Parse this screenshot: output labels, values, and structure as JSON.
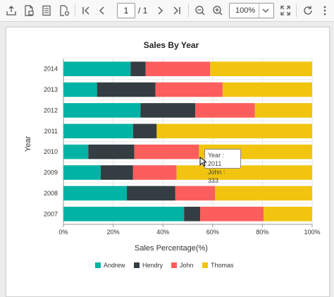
{
  "toolbar": {
    "page_number": "1",
    "page_total": "/ 1",
    "zoom_value": "100%",
    "icon_names": [
      "export-icon",
      "print-icon",
      "page-setup-icon",
      "settings-page-icon",
      "first-page-icon",
      "previous-page-icon",
      "next-page-icon",
      "last-page-icon",
      "zoom-out-icon",
      "zoom-in-icon",
      "fit-page-icon",
      "refresh-icon"
    ]
  },
  "tooltip": {
    "line1": "Year : 2011",
    "line2": "John : 333"
  },
  "chart_data": {
    "type": "bar",
    "orientation": "horizontal",
    "stacking": "100%",
    "title": "Sales By Year",
    "xlabel": "Sales Percentage(%)",
    "ylabel": "Year",
    "xlim": [
      0,
      100
    ],
    "x_ticks": [
      "0%",
      "20%",
      "40%",
      "60%",
      "80%",
      "100%"
    ],
    "categories": [
      "2014",
      "2013",
      "2012",
      "2011",
      "2010",
      "2009",
      "2008",
      "2007"
    ],
    "series": [
      {
        "name": "Andrew",
        "color": "#00b3a4",
        "values": [
          27,
          13.5,
          31,
          28,
          10,
          15,
          25.5,
          48.5
        ]
      },
      {
        "name": "Hendry",
        "color": "#343e42",
        "values": [
          6,
          23.5,
          22,
          9.5,
          18.5,
          13,
          19.5,
          6.5
        ]
      },
      {
        "name": "John",
        "color": "#fb5e5d",
        "values": [
          26,
          27,
          24,
          0,
          26,
          17.5,
          16,
          25.5
        ]
      },
      {
        "name": "Thomas",
        "color": "#f1c40f",
        "values": [
          41,
          36,
          23,
          62.5,
          45.5,
          54.5,
          39,
          19.5
        ]
      }
    ],
    "legend_position": "bottom",
    "grid": true
  }
}
